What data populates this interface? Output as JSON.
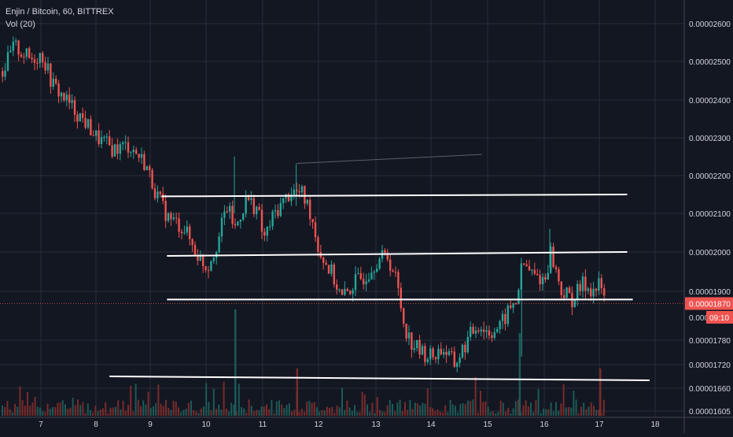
{
  "legend": {
    "title": "Enjin / Bitcoin, 60, BITTREX",
    "indicator": "Vol (20)"
  },
  "colors": {
    "background": "#131722",
    "grid": "#2a2e39",
    "up": "#26a69a",
    "down": "#ef5350",
    "up_volume": "#1c5a56",
    "down_volume": "#7a2b2b",
    "price_badge": "#ef5350",
    "trendline": "#ffffff",
    "text": "#d1d4dc"
  },
  "chart_data": {
    "type": "candlestick",
    "symbol": "Enjin / Bitcoin",
    "interval": "60",
    "exchange": "BITTREX",
    "x_ticks": [
      "7",
      "8",
      "9",
      "10",
      "11",
      "12",
      "13",
      "14",
      "15",
      "16",
      "17",
      "18"
    ],
    "y_ticks": [
      "0.00002600",
      "0.00002500",
      "0.00002400",
      "0.00002300",
      "0.00002200",
      "0.00002100",
      "0.00002000",
      "0.00001900",
      "0.00001780",
      "0.00001720",
      "0.00001660",
      "0.00001605"
    ],
    "ylim": [
      1.605e-05,
      2.65e-05
    ],
    "last_price": "0.00001870",
    "countdown": "09:10",
    "countdown_price_prefix": "0.000",
    "price_path": [
      [
        6.3,
        2.475e-05
      ],
      [
        6.5,
        2.54e-05
      ],
      [
        6.8,
        2.505e-05
      ],
      [
        7.0,
        2.52e-05
      ],
      [
        7.2,
        2.44e-05
      ],
      [
        7.5,
        2.39e-05
      ],
      [
        7.8,
        2.34e-05
      ],
      [
        8.0,
        2.3e-05
      ],
      [
        8.3,
        2.27e-05
      ],
      [
        8.6,
        2.28e-05
      ],
      [
        8.9,
        2.23e-05
      ],
      [
        9.1,
        2.15e-05
      ],
      [
        9.3,
        2.09e-05
      ],
      [
        9.6,
        2.06e-05
      ],
      [
        9.8,
        2e-05
      ],
      [
        10.0,
        1.96e-05
      ],
      [
        10.2,
        2.03e-05
      ],
      [
        10.35,
        2.12e-05
      ],
      [
        10.5,
        2.06e-05
      ],
      [
        10.7,
        2.14e-05
      ],
      [
        10.9,
        2.11e-05
      ],
      [
        11.0,
        2.03e-05
      ],
      [
        11.2,
        2.1e-05
      ],
      [
        11.5,
        2.16e-05
      ],
      [
        11.7,
        2.15e-05
      ],
      [
        11.85,
        2.1e-05
      ],
      [
        12.0,
        2e-05
      ],
      [
        12.2,
        1.95e-05
      ],
      [
        12.4,
        1.88e-05
      ],
      [
        12.6,
        1.92e-05
      ],
      [
        12.8,
        1.94e-05
      ],
      [
        13.0,
        1.98e-05
      ],
      [
        13.2,
        1.99e-05
      ],
      [
        13.35,
        1.93e-05
      ],
      [
        13.5,
        1.82e-05
      ],
      [
        13.6,
        1.78e-05
      ],
      [
        13.8,
        1.75e-05
      ],
      [
        14.0,
        1.74e-05
      ],
      [
        14.2,
        1.76e-05
      ],
      [
        14.4,
        1.72e-05
      ],
      [
        14.6,
        1.77e-05
      ],
      [
        14.8,
        1.82e-05
      ],
      [
        15.0,
        1.8e-05
      ],
      [
        15.2,
        1.81e-05
      ],
      [
        15.35,
        1.85e-05
      ],
      [
        15.5,
        1.88e-05
      ],
      [
        15.6,
        1.97e-05
      ],
      [
        15.8,
        1.94e-05
      ],
      [
        16.0,
        1.93e-05
      ],
      [
        16.1,
        2e-05
      ],
      [
        16.3,
        1.9e-05
      ],
      [
        16.5,
        1.88e-05
      ],
      [
        16.7,
        1.92e-05
      ],
      [
        16.9,
        1.9e-05
      ],
      [
        17.0,
        1.92e-05
      ],
      [
        17.1,
        1.87e-05
      ]
    ],
    "horizontal_lines": [
      {
        "x_start": 9.2,
        "x_end": 17.5,
        "y_start": 2.145e-05,
        "y_end": 2.15e-05
      },
      {
        "x_start": 9.3,
        "x_end": 17.5,
        "y_start": 1.99e-05,
        "y_end": 2e-05
      },
      {
        "x_start": 9.3,
        "x_end": 17.6,
        "y_start": 1.88e-05,
        "y_end": 1.88e-05
      },
      {
        "x_start": 8.25,
        "x_end": 17.9,
        "y_start": 1.69e-05,
        "y_end": 1.68e-05
      }
    ],
    "faint_line": {
      "x_start": 11.6,
      "x_end": 14.9,
      "y_start": 2.232e-05,
      "y_end": 2.256e-05
    },
    "volume_spikes": [
      {
        "x": 10.5,
        "color": "up"
      },
      {
        "x": 11.6,
        "color": "down"
      },
      {
        "x": 15.55,
        "color": "up"
      },
      {
        "x": 17.0,
        "color": "down"
      }
    ],
    "grid": true
  }
}
